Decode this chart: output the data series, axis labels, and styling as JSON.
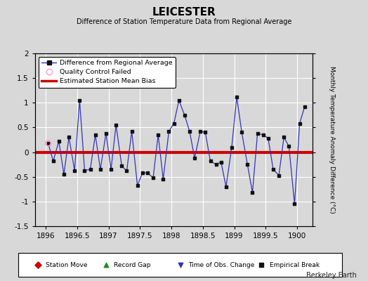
{
  "title": "LEICESTER",
  "subtitle": "Difference of Station Temperature Data from Regional Average",
  "ylabel": "Monthly Temperature Anomaly Difference (°C)",
  "xlabel_ticks": [
    1896,
    1896.5,
    1897,
    1897.5,
    1898,
    1898.5,
    1899,
    1899.5,
    1900
  ],
  "ylim": [
    -1.5,
    2.0
  ],
  "xlim": [
    1895.83,
    1900.25
  ],
  "bias_value": 0.0,
  "background_color": "#d8d8d8",
  "plot_bg_color": "#d8d8d8",
  "line_color": "#3333bb",
  "marker_color": "#111111",
  "bias_color": "#cc0000",
  "qc_fail_x": 1896.04,
  "qc_fail_y": 0.18,
  "x_data": [
    1896.04,
    1896.12,
    1896.21,
    1896.29,
    1896.37,
    1896.46,
    1896.54,
    1896.62,
    1896.71,
    1896.79,
    1896.87,
    1896.96,
    1897.04,
    1897.12,
    1897.21,
    1897.29,
    1897.37,
    1897.46,
    1897.54,
    1897.62,
    1897.71,
    1897.79,
    1897.87,
    1897.96,
    1898.04,
    1898.12,
    1898.21,
    1898.29,
    1898.37,
    1898.46,
    1898.54,
    1898.62,
    1898.71,
    1898.79,
    1898.87,
    1898.96,
    1899.04,
    1899.12,
    1899.21,
    1899.29,
    1899.37,
    1899.46,
    1899.54,
    1899.62,
    1899.71,
    1899.79,
    1899.87,
    1899.96,
    1900.04,
    1900.12
  ],
  "y_data": [
    0.18,
    -0.18,
    0.22,
    -0.45,
    0.3,
    -0.37,
    1.05,
    -0.37,
    -0.35,
    0.35,
    -0.35,
    0.38,
    -0.35,
    0.55,
    -0.28,
    -0.38,
    0.42,
    -0.68,
    -0.42,
    -0.42,
    -0.52,
    0.35,
    -0.55,
    0.42,
    0.58,
    1.05,
    0.75,
    0.42,
    -0.12,
    0.42,
    0.4,
    -0.18,
    -0.25,
    -0.2,
    -0.7,
    0.1,
    1.12,
    0.4,
    -0.25,
    -0.82,
    0.38,
    0.35,
    0.28,
    -0.35,
    -0.47,
    0.3,
    0.12,
    -1.05,
    0.58,
    0.92
  ],
  "yticks": [
    -1.5,
    -1,
    -0.5,
    0,
    0.5,
    1,
    1.5,
    2
  ],
  "watermark": "Berkeley Earth",
  "legend_items": [
    {
      "label": "Difference from Regional Average",
      "color": "#3333bb",
      "type": "line_dot"
    },
    {
      "label": "Quality Control Failed",
      "color": "#ff99cc",
      "type": "circle_open"
    },
    {
      "label": "Estimated Station Mean Bias",
      "color": "#cc0000",
      "type": "line"
    }
  ],
  "bottom_legend": [
    {
      "label": "Station Move",
      "color": "#cc0000",
      "marker": "D"
    },
    {
      "label": "Record Gap",
      "color": "#228822",
      "marker": "^"
    },
    {
      "label": "Time of Obs. Change",
      "color": "#3333bb",
      "marker": "v"
    },
    {
      "label": "Empirical Break",
      "color": "#111111",
      "marker": "s"
    }
  ]
}
